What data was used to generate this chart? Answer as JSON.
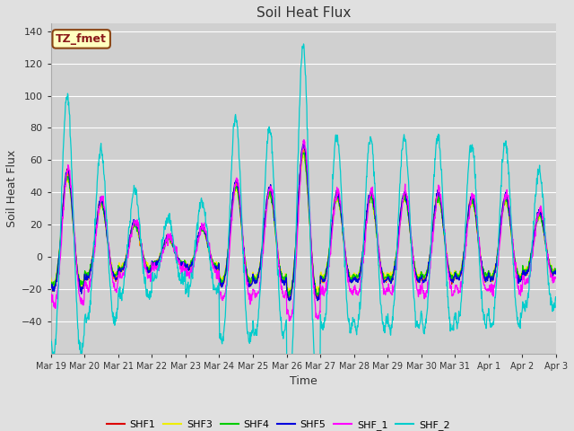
{
  "title": "Soil Heat Flux",
  "xlabel": "Time",
  "ylabel": "Soil Heat Flux",
  "ylim": [
    -60,
    145
  ],
  "yticks": [
    -40,
    -20,
    0,
    20,
    40,
    60,
    80,
    100,
    120,
    140
  ],
  "background_color": "#e0e0e0",
  "plot_bg_color": "#d0d0d0",
  "annotation_text": "TZ_fmet",
  "annotation_bg": "#ffffc0",
  "annotation_border": "#8b4513",
  "series_colors": {
    "SHF1": "#dd0000",
    "SHF2": "#ff8800",
    "SHF3": "#eeee00",
    "SHF4": "#00cc00",
    "SHF5": "#0000dd",
    "SHF_1": "#ff00ff",
    "SHF_2": "#00cccc"
  },
  "day_peak_amps": [
    63,
    42,
    26,
    15,
    22,
    55,
    50,
    82,
    47,
    47,
    47,
    47,
    44,
    45,
    33
  ],
  "n_days": 15,
  "n_per_day": 96
}
